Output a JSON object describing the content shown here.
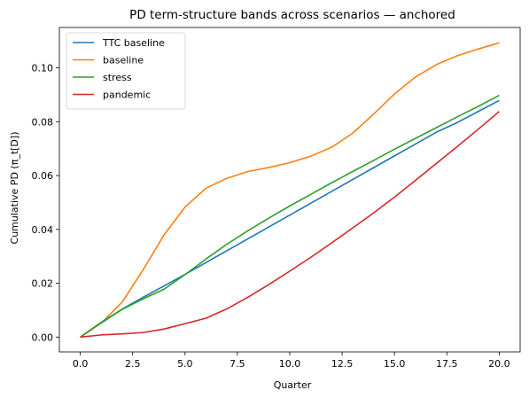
{
  "chart_data": {
    "type": "line",
    "title": "PD term-structure bands across scenarios — anchored",
    "xlabel": "Quarter",
    "ylabel": "Cumulative PD (π_t[D])",
    "xlim": [
      -1.0,
      21.0
    ],
    "ylim": [
      -0.0055,
      0.115
    ],
    "xticks": [
      0,
      2.5,
      5,
      7.5,
      10,
      12.5,
      15,
      17.5,
      20
    ],
    "xtick_labels": [
      "0.0",
      "2.5",
      "5.0",
      "7.5",
      "10.0",
      "12.5",
      "15.0",
      "17.5",
      "20.0"
    ],
    "yticks": [
      0,
      0.02,
      0.04,
      0.06,
      0.08,
      0.1
    ],
    "ytick_labels": [
      "0.00",
      "0.02",
      "0.04",
      "0.06",
      "0.08",
      "0.10"
    ],
    "grid": false,
    "legend_position": "top-left",
    "x": [
      0,
      1,
      2,
      3,
      4,
      5,
      6,
      7,
      8,
      9,
      10,
      11,
      12,
      13,
      14,
      15,
      16,
      17,
      18,
      19,
      20
    ],
    "series": [
      {
        "name": "TTC baseline",
        "color": "#1f77b4",
        "values": [
          0.0,
          0.0052,
          0.0104,
          0.0148,
          0.019,
          0.0233,
          0.0277,
          0.0321,
          0.0365,
          0.0409,
          0.0453,
          0.0497,
          0.0541,
          0.0585,
          0.0629,
          0.0673,
          0.0717,
          0.0761,
          0.0797,
          0.0838,
          0.0879
        ]
      },
      {
        "name": "baseline",
        "color": "#ff7f0e",
        "values": [
          0.0,
          0.0052,
          0.013,
          0.025,
          0.038,
          0.0483,
          0.0553,
          0.059,
          0.0615,
          0.063,
          0.0648,
          0.0672,
          0.0705,
          0.0757,
          0.0828,
          0.0903,
          0.0966,
          0.1012,
          0.1045,
          0.107,
          0.1093
        ]
      },
      {
        "name": "stress",
        "color": "#2ca02c",
        "values": [
          0.0,
          0.0055,
          0.0103,
          0.0142,
          0.0178,
          0.0232,
          0.029,
          0.0345,
          0.0395,
          0.0442,
          0.0487,
          0.053,
          0.0573,
          0.0615,
          0.0656,
          0.0698,
          0.0738,
          0.0778,
          0.0818,
          0.0857,
          0.0898
        ]
      },
      {
        "name": "pandemic",
        "color": "#d62728",
        "values": [
          0.0,
          0.0008,
          0.0012,
          0.0017,
          0.003,
          0.005,
          0.007,
          0.0105,
          0.0148,
          0.0195,
          0.0245,
          0.0296,
          0.035,
          0.0405,
          0.0461,
          0.052,
          0.0582,
          0.0645,
          0.0708,
          0.0772,
          0.0838
        ]
      }
    ]
  }
}
